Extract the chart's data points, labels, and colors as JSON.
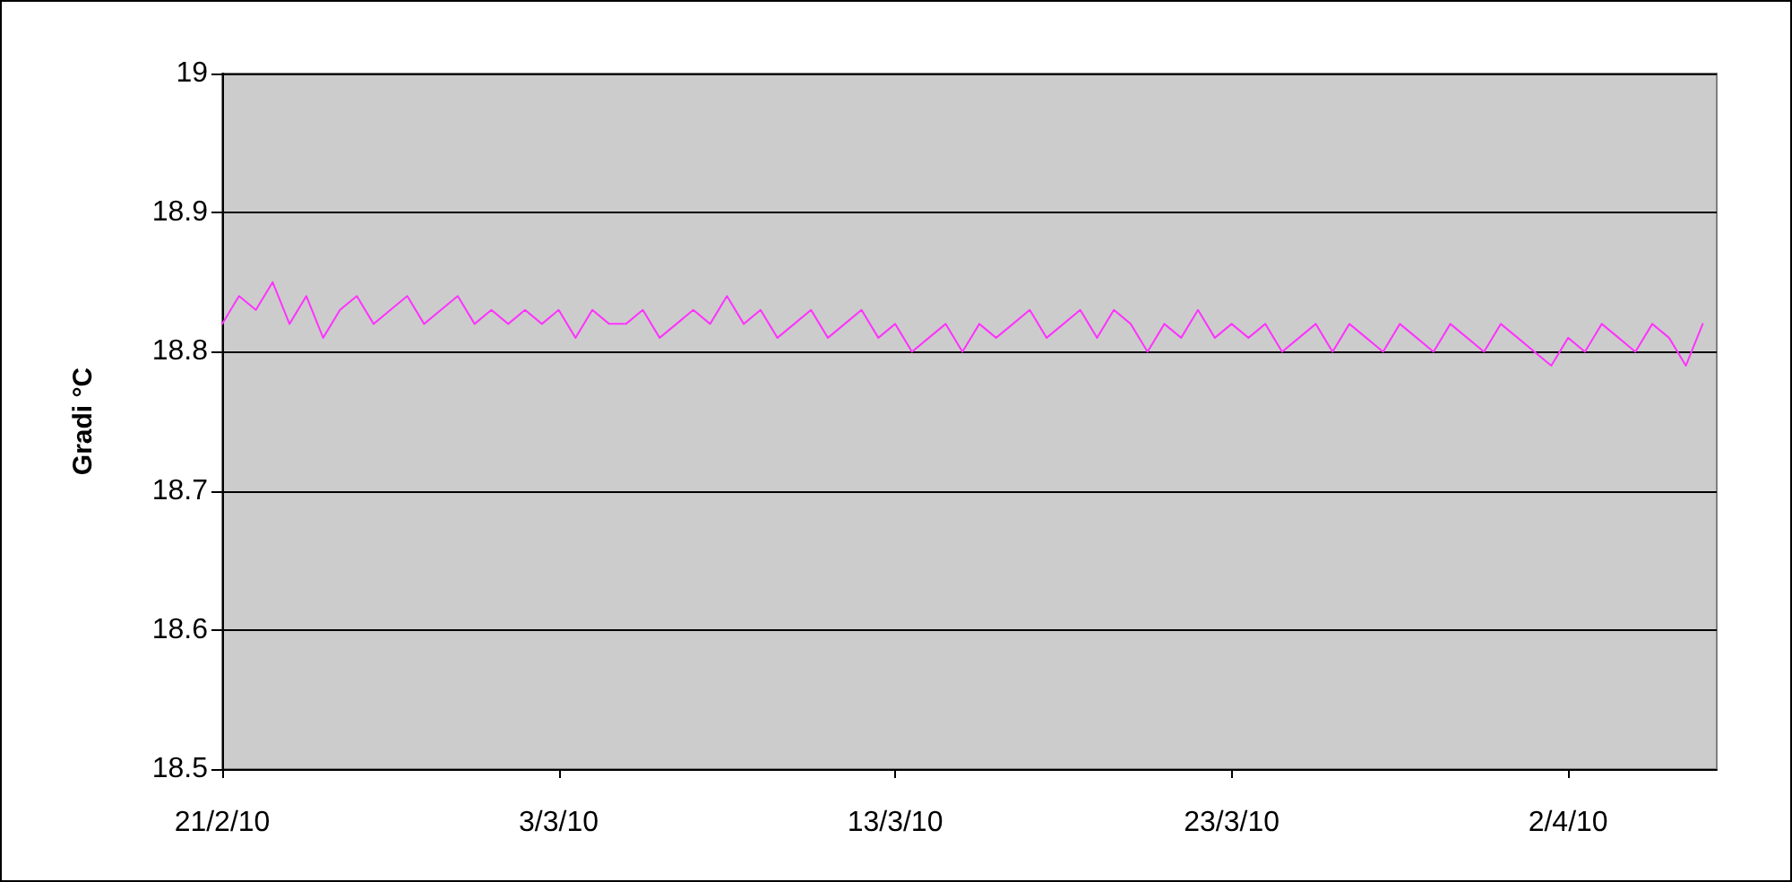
{
  "chart_data": {
    "type": "line",
    "ylabel": "Gradi °C",
    "xlim": [
      "2010-02-21T00:00",
      "2010-04-06T10:00"
    ],
    "xticks": [
      {
        "value": "2010-02-21",
        "label": "21/2/10"
      },
      {
        "value": "2010-03-03",
        "label": "3/3/10"
      },
      {
        "value": "2010-03-13",
        "label": "13/3/10"
      },
      {
        "value": "2010-03-23",
        "label": "23/3/10"
      },
      {
        "value": "2010-04-02",
        "label": "2/4/10"
      }
    ],
    "ylim": [
      18.5,
      19
    ],
    "yticks": [
      18.5,
      18.6,
      18.7,
      18.8,
      18.9,
      19
    ],
    "grid": "y",
    "marker": "none",
    "line_style": "solid",
    "x": [
      "2010-02-21T00:00",
      "2010-02-21T12:00",
      "2010-02-22T00:00",
      "2010-02-22T12:00",
      "2010-02-23T00:00",
      "2010-02-23T12:00",
      "2010-02-24T00:00",
      "2010-02-24T12:00",
      "2010-02-25T00:00",
      "2010-02-25T12:00",
      "2010-02-26T00:00",
      "2010-02-26T12:00",
      "2010-02-27T00:00",
      "2010-02-27T12:00",
      "2010-02-28T00:00",
      "2010-02-28T12:00",
      "2010-03-01T00:00",
      "2010-03-01T12:00",
      "2010-03-02T00:00",
      "2010-03-02T12:00",
      "2010-03-03T00:00",
      "2010-03-03T12:00",
      "2010-03-04T00:00",
      "2010-03-04T12:00",
      "2010-03-05T00:00",
      "2010-03-05T12:00",
      "2010-03-06T00:00",
      "2010-03-06T12:00",
      "2010-03-07T00:00",
      "2010-03-07T12:00",
      "2010-03-08T00:00",
      "2010-03-08T12:00",
      "2010-03-09T00:00",
      "2010-03-09T12:00",
      "2010-03-10T00:00",
      "2010-03-10T12:00",
      "2010-03-11T00:00",
      "2010-03-11T12:00",
      "2010-03-12T00:00",
      "2010-03-12T12:00",
      "2010-03-13T00:00",
      "2010-03-13T12:00",
      "2010-03-14T00:00",
      "2010-03-14T12:00",
      "2010-03-15T00:00",
      "2010-03-15T12:00",
      "2010-03-16T00:00",
      "2010-03-16T12:00",
      "2010-03-17T00:00",
      "2010-03-17T12:00",
      "2010-03-18T00:00",
      "2010-03-18T12:00",
      "2010-03-19T00:00",
      "2010-03-19T12:00",
      "2010-03-20T00:00",
      "2010-03-20T12:00",
      "2010-03-21T00:00",
      "2010-03-21T12:00",
      "2010-03-22T00:00",
      "2010-03-22T12:00",
      "2010-03-23T00:00",
      "2010-03-23T12:00",
      "2010-03-24T00:00",
      "2010-03-24T12:00",
      "2010-03-25T00:00",
      "2010-03-25T12:00",
      "2010-03-26T00:00",
      "2010-03-26T12:00",
      "2010-03-27T00:00",
      "2010-03-27T12:00",
      "2010-03-28T00:00",
      "2010-03-28T12:00",
      "2010-03-29T00:00",
      "2010-03-29T12:00",
      "2010-03-30T00:00",
      "2010-03-30T12:00",
      "2010-03-31T00:00",
      "2010-03-31T12:00",
      "2010-04-01T00:00",
      "2010-04-01T12:00",
      "2010-04-02T00:00",
      "2010-04-02T12:00",
      "2010-04-03T00:00",
      "2010-04-03T12:00",
      "2010-04-04T00:00",
      "2010-04-04T12:00",
      "2010-04-05T00:00",
      "2010-04-05T12:00",
      "2010-04-06T00:00"
    ],
    "series": [
      {
        "color": "#ff33ff",
        "values": [
          18.82,
          18.84,
          18.83,
          18.85,
          18.82,
          18.84,
          18.81,
          18.83,
          18.84,
          18.82,
          18.83,
          18.84,
          18.82,
          18.83,
          18.84,
          18.82,
          18.83,
          18.82,
          18.83,
          18.82,
          18.83,
          18.81,
          18.83,
          18.82,
          18.82,
          18.83,
          18.81,
          18.82,
          18.83,
          18.82,
          18.84,
          18.82,
          18.83,
          18.81,
          18.82,
          18.83,
          18.81,
          18.82,
          18.83,
          18.81,
          18.82,
          18.8,
          18.81,
          18.82,
          18.8,
          18.82,
          18.81,
          18.82,
          18.83,
          18.81,
          18.82,
          18.83,
          18.81,
          18.83,
          18.82,
          18.8,
          18.82,
          18.81,
          18.83,
          18.81,
          18.82,
          18.81,
          18.82,
          18.8,
          18.81,
          18.82,
          18.8,
          18.82,
          18.81,
          18.8,
          18.82,
          18.81,
          18.8,
          18.82,
          18.81,
          18.8,
          18.82,
          18.81,
          18.8,
          18.79,
          18.81,
          18.8,
          18.82,
          18.81,
          18.8,
          18.82,
          18.81,
          18.79,
          18.82
        ]
      }
    ]
  }
}
